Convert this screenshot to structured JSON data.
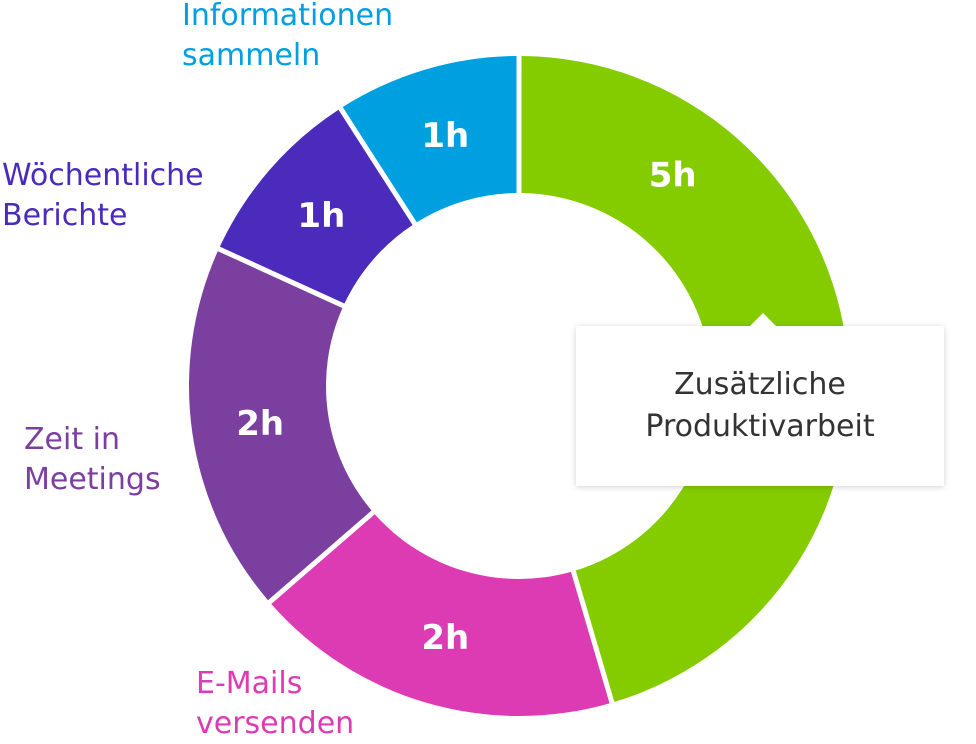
{
  "chart_data": {
    "type": "pie",
    "variant": "donut",
    "title": "",
    "unit": "h",
    "start_angle_deg": 0,
    "direction": "clockwise",
    "categories": [
      [
        "Zusätzliche",
        "Produktivarbeit"
      ],
      [
        "E-Mails",
        "versenden"
      ],
      [
        "Zeit in",
        "Meetings"
      ],
      [
        "Wöchentliche",
        "Berichte"
      ],
      [
        "Informationen",
        "sammeln"
      ]
    ],
    "values": [
      5,
      2,
      2,
      1,
      1
    ],
    "value_labels": [
      "5h",
      "2h",
      "2h",
      "1h",
      "1h"
    ],
    "colors": [
      "#84cc00",
      "#dd3bb4",
      "#7b3fa0",
      "#4b2bbc",
      "#009fe0"
    ],
    "legend": "labels outside slices",
    "tooltip": {
      "category_index": 0,
      "lines": [
        "Zusätzliche",
        "Produktivarbeit"
      ]
    }
  }
}
